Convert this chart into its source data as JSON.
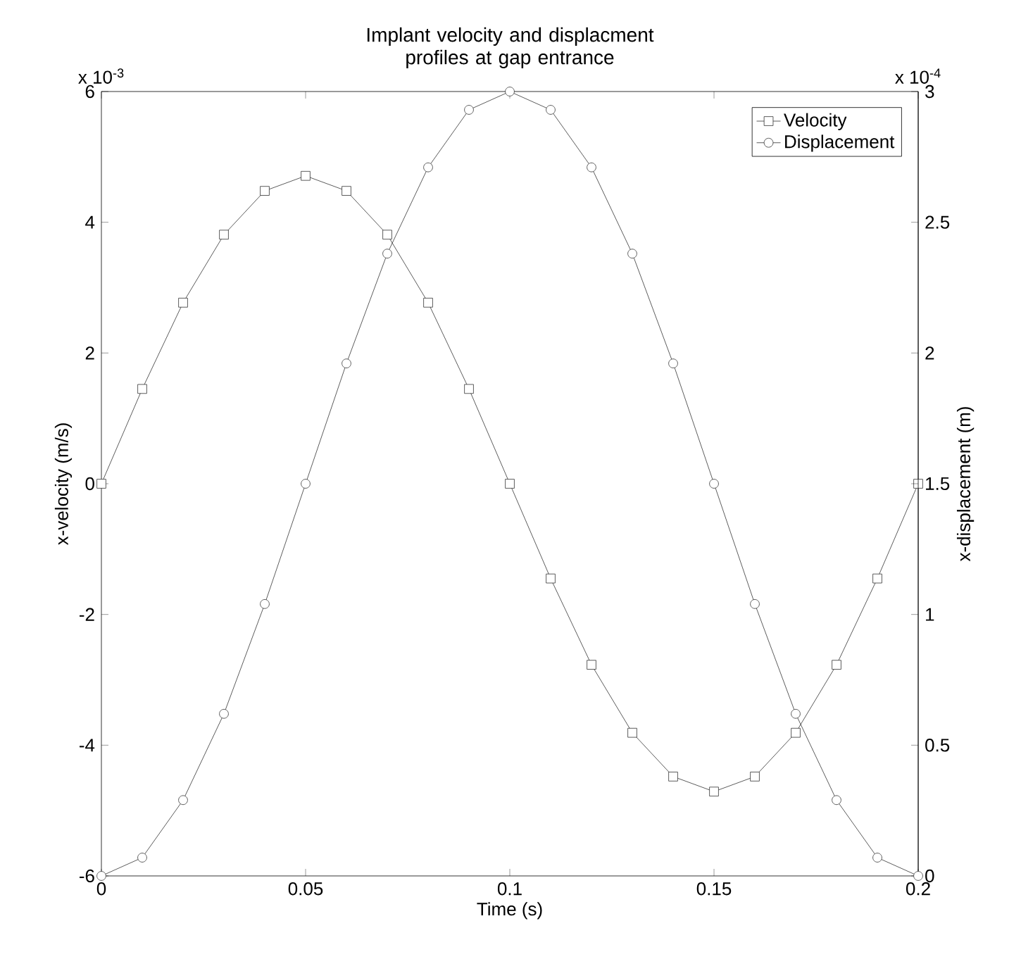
{
  "chart_data": {
    "type": "line",
    "title": "Implant velocity and displacment profiles at gap entrance",
    "xlabel": "Time (s)",
    "ylabel": "x-velocity (m/s)",
    "y2label": "x-displacement (m)",
    "x": [
      0,
      0.01,
      0.02,
      0.03,
      0.04,
      0.05,
      0.06,
      0.07,
      0.08,
      0.09,
      0.1,
      0.11,
      0.12,
      0.13,
      0.14,
      0.15,
      0.16,
      0.17,
      0.18,
      0.19,
      0.2
    ],
    "series": [
      {
        "name": "Velocity",
        "color": "#333333",
        "marker": "square",
        "values": [
          0,
          1.45,
          2.77,
          3.81,
          4.48,
          4.71,
          4.48,
          3.81,
          2.77,
          1.45,
          0,
          -1.45,
          -2.77,
          -3.81,
          -4.48,
          -4.71,
          -4.48,
          -3.81,
          -2.77,
          -1.45,
          0
        ]
      },
      {
        "name": "Displacement",
        "color": "#333333",
        "marker": "circle",
        "axis": "y2",
        "values": [
          0,
          0.07,
          0.29,
          0.62,
          1.04,
          1.5,
          1.96,
          2.38,
          2.71,
          2.93,
          3.0,
          2.93,
          2.71,
          2.38,
          1.96,
          1.5,
          1.04,
          0.62,
          0.29,
          0.07,
          0
        ]
      }
    ],
    "xlim": [
      0,
      0.2
    ],
    "xticks": [
      0,
      0.05,
      0.1,
      0.15,
      0.2
    ],
    "ylim": [
      -6,
      6
    ],
    "yticks": [
      -6,
      -4,
      -2,
      0,
      2,
      4,
      6
    ],
    "y2lim": [
      0,
      3
    ],
    "y2ticks": [
      0,
      0.5,
      1,
      1.5,
      2,
      2.5,
      3
    ],
    "annotations": [
      "x 10$^{-3}$",
      "x 10$^{-4}$"
    ],
    "legend": "top right",
    "line_style": "solid"
  }
}
